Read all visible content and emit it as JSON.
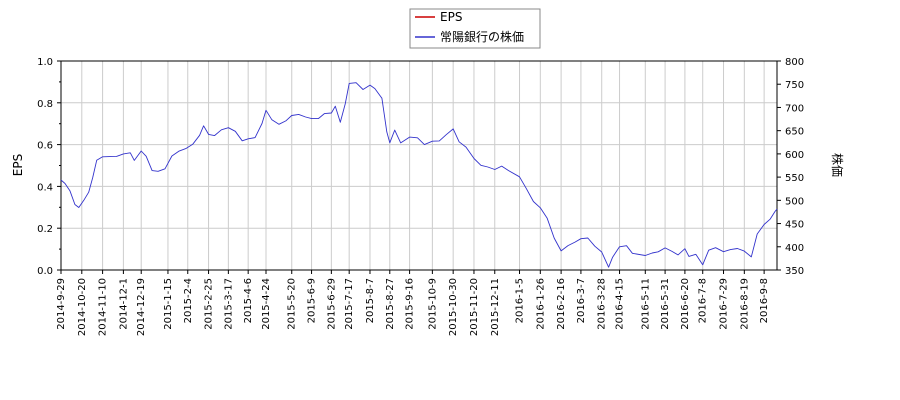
{
  "chart_data": {
    "type": "line",
    "legend": {
      "placement": "top-center",
      "entries": [
        "EPS",
        "常陽銀行の株価"
      ]
    },
    "left_axis": {
      "label": "EPS",
      "ylim": [
        0.0,
        1.0
      ],
      "ticks": [
        "0.0",
        "0.2",
        "0.4",
        "0.6",
        "0.8",
        "1.0"
      ]
    },
    "right_axis": {
      "label": "株価",
      "ylim": [
        350,
        800
      ],
      "ticks": [
        "350",
        "400",
        "450",
        "500",
        "550",
        "600",
        "650",
        "700",
        "750",
        "800"
      ]
    },
    "x_axis": {
      "range": [
        "2014-09-29",
        "2016-09-21"
      ],
      "ticks": [
        "2014-9-29",
        "2014-10-20",
        "2014-11-10",
        "2014-12-1",
        "2014-12-19",
        "2015-1-15",
        "2015-2-4",
        "2015-2-25",
        "2015-3-17",
        "2015-4-6",
        "2015-4-24",
        "2015-5-20",
        "2015-6-9",
        "2015-6-29",
        "2015-7-17",
        "2015-8-7",
        "2015-8-27",
        "2015-9-16",
        "2015-10-9",
        "2015-10-30",
        "2015-11-20",
        "2015-12-11",
        "2016-1-5",
        "2016-1-26",
        "2016-2-16",
        "2016-3-7",
        "2016-3-28",
        "2016-4-15",
        "2016-5-11",
        "2016-5-31",
        "2016-6-20",
        "2016-7-8",
        "2016-7-29",
        "2016-8-19",
        "2016-9-8"
      ]
    },
    "grid": true,
    "series": [
      {
        "name": "EPS",
        "color": "#cc0000",
        "axis": "left",
        "values": []
      },
      {
        "name": "常陽銀行の株価",
        "color": "#3333cc",
        "axis": "right",
        "points": [
          [
            "2014-09-29",
            540
          ],
          [
            "2014-10-03",
            535
          ],
          [
            "2014-10-08",
            522
          ],
          [
            "2014-10-13",
            495
          ],
          [
            "2014-10-17",
            482
          ],
          [
            "2014-10-22",
            500
          ],
          [
            "2014-10-27",
            520
          ],
          [
            "2014-10-31",
            545
          ],
          [
            "2014-11-04",
            585
          ],
          [
            "2014-11-10",
            595
          ],
          [
            "2014-11-17",
            598
          ],
          [
            "2014-11-24",
            592
          ],
          [
            "2014-12-01",
            600
          ],
          [
            "2014-12-08",
            605
          ],
          [
            "2014-12-12",
            582
          ],
          [
            "2014-12-19",
            605
          ],
          [
            "2014-12-24",
            596
          ],
          [
            "2014-12-30",
            568
          ],
          [
            "2015-01-05",
            560
          ],
          [
            "2015-01-12",
            568
          ],
          [
            "2015-01-19",
            598
          ],
          [
            "2015-01-26",
            602
          ],
          [
            "2015-02-02",
            610
          ],
          [
            "2015-02-09",
            622
          ],
          [
            "2015-02-16",
            644
          ],
          [
            "2015-02-20",
            658
          ],
          [
            "2015-02-25",
            642
          ],
          [
            "2015-03-03",
            642
          ],
          [
            "2015-03-10",
            648
          ],
          [
            "2015-03-17",
            655
          ],
          [
            "2015-03-24",
            650
          ],
          [
            "2015-03-31",
            632
          ],
          [
            "2015-04-06",
            630
          ],
          [
            "2015-04-13",
            635
          ],
          [
            "2015-04-20",
            668
          ],
          [
            "2015-04-24",
            690
          ],
          [
            "2015-04-30",
            672
          ],
          [
            "2015-05-07",
            665
          ],
          [
            "2015-05-14",
            675
          ],
          [
            "2015-05-20",
            680
          ],
          [
            "2015-05-27",
            685
          ],
          [
            "2015-06-03",
            682
          ],
          [
            "2015-06-09",
            672
          ],
          [
            "2015-06-16",
            675
          ],
          [
            "2015-06-22",
            688
          ],
          [
            "2015-06-29",
            692
          ],
          [
            "2015-07-03",
            700
          ],
          [
            "2015-07-08",
            668
          ],
          [
            "2015-07-13",
            710
          ],
          [
            "2015-07-17",
            748
          ],
          [
            "2015-07-24",
            752
          ],
          [
            "2015-07-31",
            740
          ],
          [
            "2015-08-07",
            752
          ],
          [
            "2015-08-12",
            738
          ],
          [
            "2015-08-19",
            720
          ],
          [
            "2015-08-24",
            650
          ],
          [
            "2015-08-27",
            620
          ],
          [
            "2015-09-01",
            650
          ],
          [
            "2015-09-07",
            625
          ],
          [
            "2015-09-16",
            640
          ],
          [
            "2015-09-24",
            632
          ],
          [
            "2015-10-01",
            620
          ],
          [
            "2015-10-09",
            630
          ],
          [
            "2015-10-16",
            624
          ],
          [
            "2015-10-23",
            640
          ],
          [
            "2015-10-30",
            655
          ],
          [
            "2015-11-05",
            630
          ],
          [
            "2015-11-12",
            612
          ],
          [
            "2015-11-20",
            590
          ],
          [
            "2015-11-27",
            578
          ],
          [
            "2015-12-04",
            568
          ],
          [
            "2015-12-11",
            565
          ],
          [
            "2015-12-18",
            575
          ],
          [
            "2015-12-25",
            568
          ],
          [
            "2016-01-05",
            548
          ],
          [
            "2016-01-12",
            525
          ],
          [
            "2016-01-19",
            500
          ],
          [
            "2016-01-26",
            480
          ],
          [
            "2016-02-02",
            460
          ],
          [
            "2016-02-09",
            420
          ],
          [
            "2016-02-16",
            395
          ],
          [
            "2016-02-23",
            400
          ],
          [
            "2016-03-01",
            410
          ],
          [
            "2016-03-07",
            420
          ],
          [
            "2016-03-14",
            415
          ],
          [
            "2016-03-21",
            400
          ],
          [
            "2016-03-28",
            390
          ],
          [
            "2016-04-04",
            360
          ],
          [
            "2016-04-08",
            375
          ],
          [
            "2016-04-15",
            400
          ],
          [
            "2016-04-22",
            405
          ],
          [
            "2016-04-28",
            382
          ],
          [
            "2016-05-11",
            380
          ],
          [
            "2016-05-18",
            388
          ],
          [
            "2016-05-24",
            393
          ],
          [
            "2016-05-31",
            395
          ],
          [
            "2016-06-07",
            390
          ],
          [
            "2016-06-13",
            385
          ],
          [
            "2016-06-20",
            392
          ],
          [
            "2016-06-24",
            378
          ],
          [
            "2016-07-01",
            385
          ],
          [
            "2016-07-08",
            365
          ],
          [
            "2016-07-14",
            390
          ],
          [
            "2016-07-21",
            398
          ],
          [
            "2016-07-29",
            392
          ],
          [
            "2016-08-05",
            390
          ],
          [
            "2016-08-12",
            395
          ],
          [
            "2016-08-19",
            392
          ],
          [
            "2016-08-26",
            382
          ],
          [
            "2016-09-01",
            425
          ],
          [
            "2016-09-08",
            448
          ],
          [
            "2016-09-14",
            462
          ],
          [
            "2016-09-19",
            472
          ],
          [
            "2016-09-21",
            480
          ]
        ]
      }
    ]
  }
}
